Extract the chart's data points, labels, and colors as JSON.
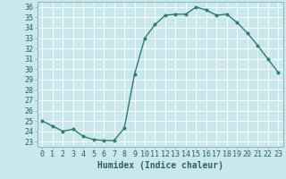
{
  "x": [
    0,
    1,
    2,
    3,
    4,
    5,
    6,
    7,
    8,
    9,
    10,
    11,
    12,
    13,
    14,
    15,
    16,
    17,
    18,
    19,
    20,
    21,
    22,
    23
  ],
  "y": [
    25.0,
    24.5,
    24.0,
    24.2,
    23.5,
    23.2,
    23.1,
    23.1,
    24.3,
    29.5,
    33.0,
    34.3,
    35.2,
    35.3,
    35.3,
    36.0,
    35.7,
    35.2,
    35.3,
    34.5,
    33.5,
    32.3,
    31.0,
    29.7
  ],
  "line_color": "#2e7d6e",
  "marker_color": "#2e7d6e",
  "bg_color": "#c8e8ee",
  "grid_color": "#ffffff",
  "xlabel": "Humidex (Indice chaleur)",
  "xlim": [
    -0.5,
    23.5
  ],
  "ylim": [
    22.5,
    36.5
  ],
  "yticks": [
    23,
    24,
    25,
    26,
    27,
    28,
    29,
    30,
    31,
    32,
    33,
    34,
    35,
    36
  ],
  "xticks": [
    0,
    1,
    2,
    3,
    4,
    5,
    6,
    7,
    8,
    9,
    10,
    11,
    12,
    13,
    14,
    15,
    16,
    17,
    18,
    19,
    20,
    21,
    22,
    23
  ],
  "xlabel_fontsize": 7,
  "tick_fontsize": 6,
  "line_width": 1.0,
  "marker_size": 2.5,
  "label_color": "#2e6060",
  "spine_color": "#8ab8c0"
}
